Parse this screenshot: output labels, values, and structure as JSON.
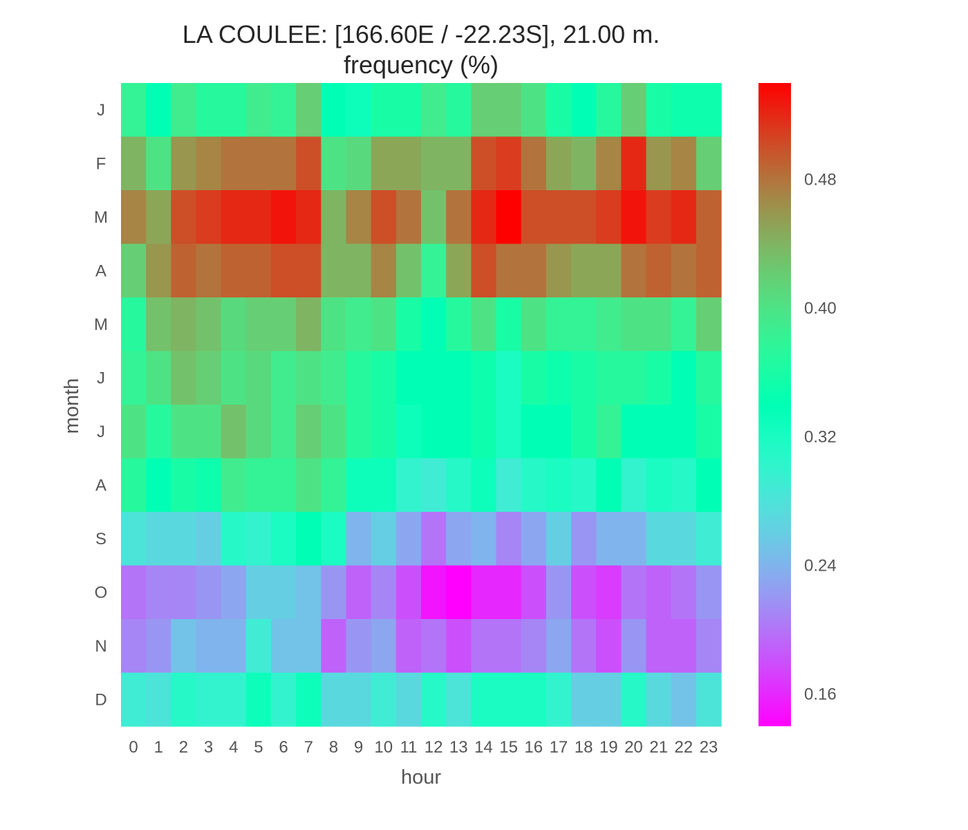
{
  "chart_data": {
    "type": "heatmap",
    "title": "LA COULEE: [166.60E / -22.23S], 21.00 m.",
    "subtitle": "frequency (%)",
    "xlabel": "hour",
    "ylabel": "month",
    "x": [
      "0",
      "1",
      "2",
      "3",
      "4",
      "5",
      "6",
      "7",
      "8",
      "9",
      "10",
      "11",
      "12",
      "13",
      "14",
      "15",
      "16",
      "17",
      "18",
      "19",
      "20",
      "21",
      "22",
      "23"
    ],
    "y": [
      "J",
      "F",
      "M",
      "A",
      "M",
      "J",
      "J",
      "A",
      "S",
      "O",
      "N",
      "D"
    ],
    "values": [
      [
        0.38,
        0.34,
        0.39,
        0.37,
        0.37,
        0.39,
        0.38,
        0.42,
        0.34,
        0.33,
        0.36,
        0.36,
        0.39,
        0.37,
        0.42,
        0.42,
        0.4,
        0.36,
        0.34,
        0.37,
        0.42,
        0.36,
        0.35,
        0.35
      ],
      [
        0.44,
        0.4,
        0.46,
        0.47,
        0.48,
        0.48,
        0.48,
        0.5,
        0.4,
        0.41,
        0.45,
        0.45,
        0.44,
        0.44,
        0.5,
        0.51,
        0.48,
        0.45,
        0.44,
        0.47,
        0.52,
        0.46,
        0.47,
        0.42
      ],
      [
        0.47,
        0.45,
        0.5,
        0.51,
        0.52,
        0.52,
        0.53,
        0.52,
        0.44,
        0.47,
        0.5,
        0.48,
        0.43,
        0.48,
        0.52,
        0.54,
        0.5,
        0.5,
        0.5,
        0.51,
        0.53,
        0.51,
        0.52,
        0.49
      ],
      [
        0.42,
        0.46,
        0.49,
        0.48,
        0.49,
        0.49,
        0.5,
        0.5,
        0.44,
        0.44,
        0.47,
        0.43,
        0.38,
        0.45,
        0.5,
        0.48,
        0.48,
        0.46,
        0.45,
        0.45,
        0.48,
        0.49,
        0.48,
        0.49
      ],
      [
        0.37,
        0.43,
        0.44,
        0.43,
        0.41,
        0.42,
        0.42,
        0.44,
        0.4,
        0.39,
        0.4,
        0.36,
        0.34,
        0.37,
        0.4,
        0.36,
        0.4,
        0.38,
        0.38,
        0.39,
        0.4,
        0.4,
        0.38,
        0.42
      ],
      [
        0.38,
        0.4,
        0.43,
        0.42,
        0.4,
        0.41,
        0.39,
        0.4,
        0.39,
        0.37,
        0.36,
        0.34,
        0.34,
        0.34,
        0.35,
        0.32,
        0.36,
        0.35,
        0.36,
        0.37,
        0.37,
        0.36,
        0.34,
        0.37
      ],
      [
        0.4,
        0.37,
        0.4,
        0.4,
        0.43,
        0.41,
        0.39,
        0.42,
        0.4,
        0.37,
        0.36,
        0.33,
        0.34,
        0.34,
        0.35,
        0.32,
        0.34,
        0.34,
        0.36,
        0.38,
        0.34,
        0.34,
        0.34,
        0.36
      ],
      [
        0.37,
        0.34,
        0.36,
        0.35,
        0.39,
        0.38,
        0.38,
        0.4,
        0.38,
        0.33,
        0.33,
        0.3,
        0.29,
        0.31,
        0.33,
        0.29,
        0.31,
        0.32,
        0.31,
        0.34,
        0.3,
        0.32,
        0.31,
        0.34
      ],
      [
        0.28,
        0.27,
        0.27,
        0.26,
        0.31,
        0.3,
        0.32,
        0.34,
        0.32,
        0.24,
        0.26,
        0.23,
        0.2,
        0.23,
        0.24,
        0.21,
        0.23,
        0.26,
        0.22,
        0.24,
        0.24,
        0.27,
        0.27,
        0.29
      ],
      [
        0.2,
        0.21,
        0.21,
        0.22,
        0.23,
        0.26,
        0.26,
        0.25,
        0.22,
        0.19,
        0.21,
        0.18,
        0.15,
        0.14,
        0.16,
        0.16,
        0.18,
        0.22,
        0.18,
        0.17,
        0.2,
        0.19,
        0.2,
        0.22
      ],
      [
        0.21,
        0.22,
        0.25,
        0.24,
        0.24,
        0.29,
        0.25,
        0.25,
        0.19,
        0.22,
        0.23,
        0.19,
        0.2,
        0.18,
        0.2,
        0.2,
        0.21,
        0.23,
        0.2,
        0.18,
        0.22,
        0.19,
        0.19,
        0.21
      ],
      [
        0.29,
        0.28,
        0.31,
        0.3,
        0.3,
        0.33,
        0.3,
        0.33,
        0.27,
        0.27,
        0.29,
        0.27,
        0.31,
        0.28,
        0.32,
        0.32,
        0.32,
        0.3,
        0.26,
        0.26,
        0.31,
        0.27,
        0.25,
        0.28
      ]
    ],
    "colorbar": {
      "colormap": "rainbow",
      "vmin": 0.14,
      "vmax": 0.54,
      "ticks": [
        0.16,
        0.24,
        0.32,
        0.4,
        0.48
      ],
      "tick_labels": [
        "0.16",
        "0.24",
        "0.32",
        "0.40",
        "0.48"
      ]
    },
    "grid": false,
    "legend": "colorbar-right"
  }
}
